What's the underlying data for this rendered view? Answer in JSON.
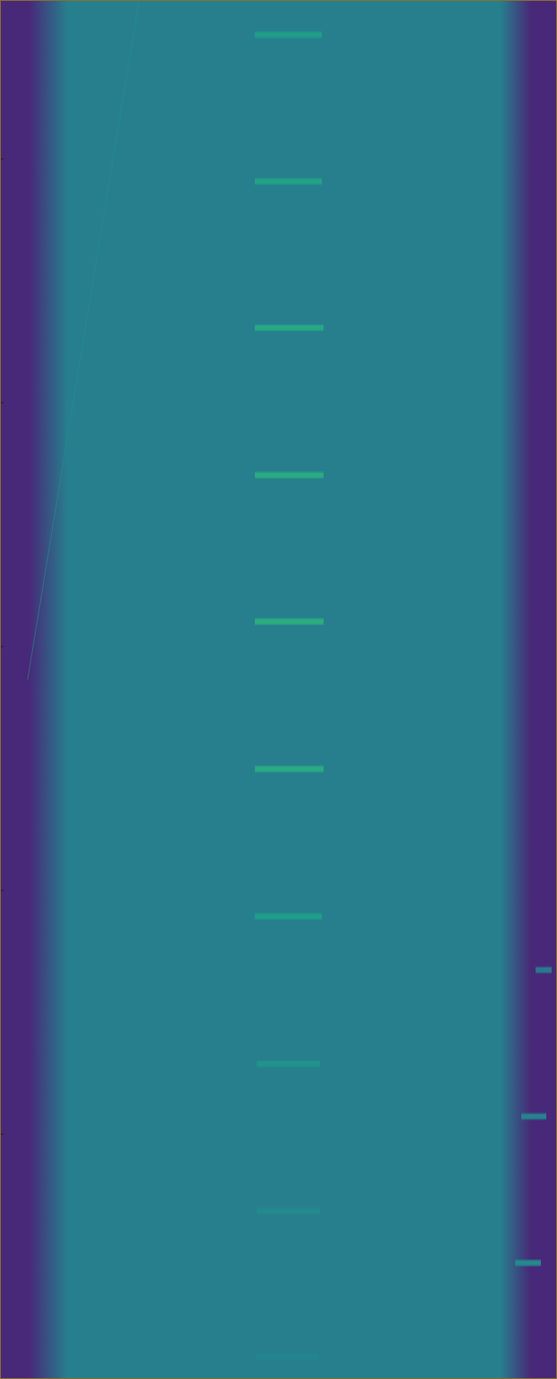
{
  "chart_data": {
    "type": "heatmap",
    "tick_labels": false,
    "xlim": [
      0,
      623
    ],
    "ylim": [
      0,
      1542
    ],
    "yticks": [
      177,
      450,
      723,
      996,
      1269
    ],
    "color_range": [
      0,
      1
    ],
    "background": {
      "value": 0.39,
      "edge_value": 0.1,
      "passband": [
        75,
        560
      ]
    },
    "bursts": [
      {
        "x": [
          285,
          360
        ],
        "y": 38,
        "value": 0.5
      },
      {
        "x": [
          285,
          360
        ],
        "y": 202,
        "value": 0.52
      },
      {
        "x": [
          285,
          362
        ],
        "y": 366,
        "value": 0.54
      },
      {
        "x": [
          285,
          362
        ],
        "y": 531,
        "value": 0.55
      },
      {
        "x": [
          285,
          362
        ],
        "y": 695,
        "value": 0.56
      },
      {
        "x": [
          285,
          362
        ],
        "y": 860,
        "value": 0.55
      },
      {
        "x": [
          285,
          360
        ],
        "y": 1025,
        "value": 0.5
      },
      {
        "x": [
          287,
          358
        ],
        "y": 1190,
        "value": 0.46
      },
      {
        "x": [
          287,
          358
        ],
        "y": 1355,
        "value": 0.43
      },
      {
        "x": [
          287,
          356
        ],
        "y": 1518,
        "value": 0.41
      },
      {
        "x": [
          600,
          618
        ],
        "y": 1085,
        "value": 0.36
      },
      {
        "x": [
          584,
          612
        ],
        "y": 1249,
        "value": 0.4
      },
      {
        "x": [
          577,
          606
        ],
        "y": 1413,
        "value": 0.42
      }
    ],
    "tracks": [
      {
        "x": [
          155,
          30
        ],
        "y": [
          0,
          760
        ],
        "value": 0.45
      }
    ]
  }
}
